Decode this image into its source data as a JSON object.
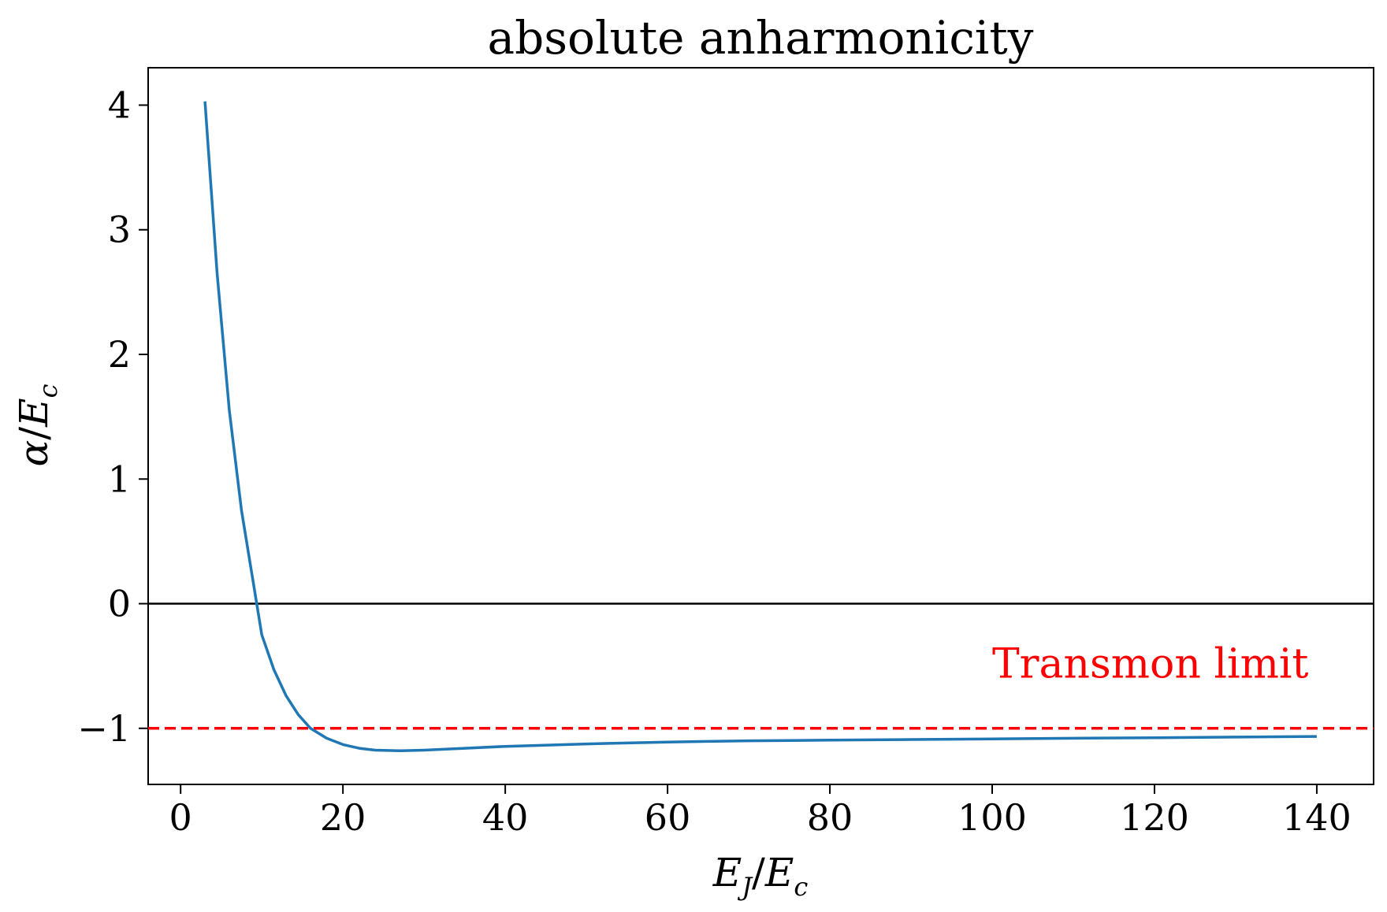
{
  "chart_data": {
    "type": "line",
    "title": "absolute anharmonicity",
    "xlabel": "E_J/E_c",
    "ylabel": "α/E_c",
    "xlim": [
      -4,
      147
    ],
    "ylim": [
      -1.45,
      4.3
    ],
    "xticks": [
      0,
      20,
      40,
      60,
      80,
      100,
      120,
      140
    ],
    "xtick_labels": [
      "0",
      "20",
      "40",
      "60",
      "80",
      "100",
      "120",
      "140"
    ],
    "yticks": [
      4,
      3,
      2,
      1,
      0,
      -1
    ],
    "ytick_labels": [
      "4",
      "3",
      "2",
      "1",
      "0",
      "−1"
    ],
    "grid": false,
    "series": [
      {
        "color": "#1f77b4",
        "x": [
          3,
          4.5,
          6,
          7.5,
          9,
          10,
          11.5,
          13,
          14.5,
          16,
          18,
          20,
          22,
          24,
          27,
          30,
          35,
          40,
          50,
          60,
          70,
          80,
          90,
          100,
          110,
          120,
          130,
          140
        ],
        "y": [
          4.03,
          2.65,
          1.55,
          0.75,
          0.15,
          -0.25,
          -0.53,
          -0.74,
          -0.89,
          -1.0,
          -1.08,
          -1.13,
          -1.16,
          -1.175,
          -1.18,
          -1.175,
          -1.16,
          -1.145,
          -1.125,
          -1.11,
          -1.1,
          -1.095,
          -1.09,
          -1.085,
          -1.08,
          -1.075,
          -1.07,
          -1.065
        ]
      }
    ],
    "reference_lines": [
      {
        "y": 0,
        "color": "#000000",
        "style": "solid"
      },
      {
        "y": -1,
        "color": "#ff0000",
        "style": "dashed"
      }
    ],
    "annotations": [
      {
        "text": "Transmon limit",
        "color": "#ff0000",
        "x": 100,
        "y": -0.48
      }
    ]
  }
}
